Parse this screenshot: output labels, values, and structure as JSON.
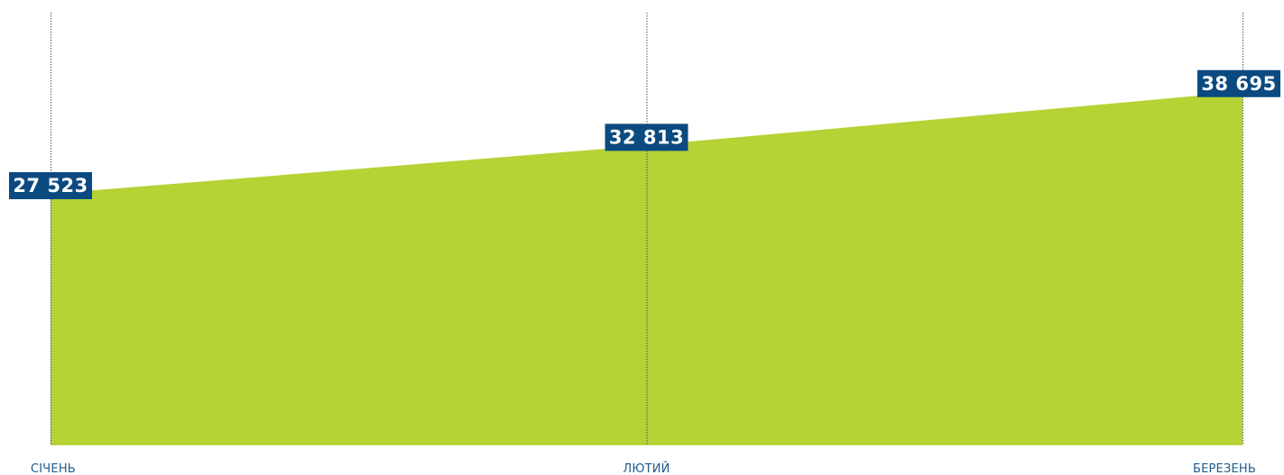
{
  "chart_data": {
    "type": "area",
    "categories": [
      "СІЧЕНЬ",
      "ЛЮТИЙ",
      "БЕРЕЗЕНЬ"
    ],
    "values": [
      27523,
      32813,
      38695
    ],
    "value_labels": [
      "27 523",
      "32 813",
      "38 695"
    ],
    "ylim": [
      0,
      44000
    ],
    "grid": "vertical dotted lines at each category",
    "legend": "none"
  },
  "colors": {
    "area_fill": "#b5d334",
    "label_bg": "#0b4a80",
    "label_text": "#ffffff",
    "gridline": "#555555",
    "tick_text": "#1e5a8c"
  }
}
